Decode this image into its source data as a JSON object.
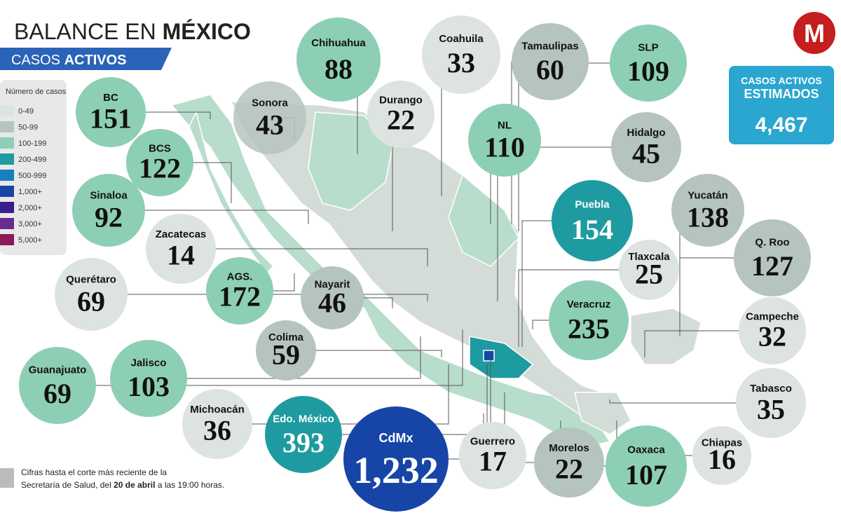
{
  "header": {
    "title_prefix": "BALANCE EN",
    "title_bold": "MÉXICO",
    "subtitle_prefix": "CASOS",
    "subtitle_bold": "ACTIVOS",
    "logo": "M"
  },
  "legend": {
    "title": "Número de casos",
    "items": [
      {
        "label": "0-49",
        "color": "#dde3e0"
      },
      {
        "label": "50-99",
        "color": "#b6c4be"
      },
      {
        "label": "100-199",
        "color": "#8dcfb4"
      },
      {
        "label": "200-499",
        "color": "#1e9ba0"
      },
      {
        "label": "500-999",
        "color": "#1a7fc0"
      },
      {
        "label": "1,000+",
        "color": "#1745a7"
      },
      {
        "label": "2,000+",
        "color": "#3b1d8f"
      },
      {
        "label": "3,000+",
        "color": "#6a2a8f"
      },
      {
        "label": "5,000+",
        "color": "#8a1a5a"
      }
    ]
  },
  "estimated": {
    "title": "CASOS ACTIVOS ESTIMADOS",
    "value": 4467,
    "value_label": "4,467"
  },
  "states": [
    {
      "name": "BC",
      "value": 151,
      "color": "#8dcfb4"
    },
    {
      "name": "BCS",
      "value": 122,
      "color": "#8dcfb4"
    },
    {
      "name": "Sinaloa",
      "value": 92,
      "color": "#8dcfb4"
    },
    {
      "name": "Zacatecas",
      "value": 14,
      "color": "#dde3e0"
    },
    {
      "name": "Querétaro",
      "value": 69,
      "color": "#dde3e0"
    },
    {
      "name": "AGS.",
      "value": 172,
      "color": "#8dcfb4"
    },
    {
      "name": "Nayarit",
      "value": 46,
      "color": "#b6c4be"
    },
    {
      "name": "Colima",
      "value": 59,
      "color": "#b6c4be"
    },
    {
      "name": "Guanajuato",
      "value": 69,
      "color": "#8dcfb4"
    },
    {
      "name": "Jalisco",
      "value": 103,
      "color": "#8dcfb4"
    },
    {
      "name": "Michoacán",
      "value": 36,
      "color": "#dde3e0"
    },
    {
      "name": "Edo. México",
      "value": 393,
      "color": "#1e9ba0"
    },
    {
      "name": "CdMx",
      "value": 1232,
      "value_label": "1,232",
      "color": "#1745a7"
    },
    {
      "name": "Guerrero",
      "value": 17,
      "color": "#dde3e0"
    },
    {
      "name": "Morelos",
      "value": 22,
      "color": "#b6c4be"
    },
    {
      "name": "Oaxaca",
      "value": 107,
      "color": "#8dcfb4"
    },
    {
      "name": "Chiapas",
      "value": 16,
      "color": "#dde3e0"
    },
    {
      "name": "Tabasco",
      "value": 35,
      "color": "#dde3e0"
    },
    {
      "name": "Campeche",
      "value": 32,
      "color": "#dde3e0"
    },
    {
      "name": "Q. Roo",
      "value": 127,
      "color": "#b6c4be"
    },
    {
      "name": "Yucatán",
      "value": 138,
      "color": "#b6c4be"
    },
    {
      "name": "Tlaxcala",
      "value": 25,
      "color": "#dde3e0"
    },
    {
      "name": "Veracruz",
      "value": 235,
      "color": "#8dcfb4"
    },
    {
      "name": "Puebla",
      "value": 154,
      "color": "#1e9ba0"
    },
    {
      "name": "Hidalgo",
      "value": 45,
      "color": "#b6c4be"
    },
    {
      "name": "SLP",
      "value": 109,
      "color": "#8dcfb4"
    },
    {
      "name": "NL",
      "value": 110,
      "color": "#8dcfb4"
    },
    {
      "name": "Tamaulipas",
      "value": 60,
      "color": "#b6c4be"
    },
    {
      "name": "Durango",
      "value": 22,
      "color": "#dde3e0"
    },
    {
      "name": "Coahuila",
      "value": 33,
      "color": "#dde3e0"
    },
    {
      "name": "Sonora",
      "value": 43,
      "color": "#b6c4be"
    },
    {
      "name": "Chihuahua",
      "value": 88,
      "color": "#8dcfb4"
    }
  ],
  "footnote": {
    "line1": "Cifras hasta el corte más reciente de la",
    "line2_prefix": "Secretaría de Salud, del",
    "line2_bold": "20 de abril",
    "line2_suffix": "a las 19:00 horas."
  }
}
